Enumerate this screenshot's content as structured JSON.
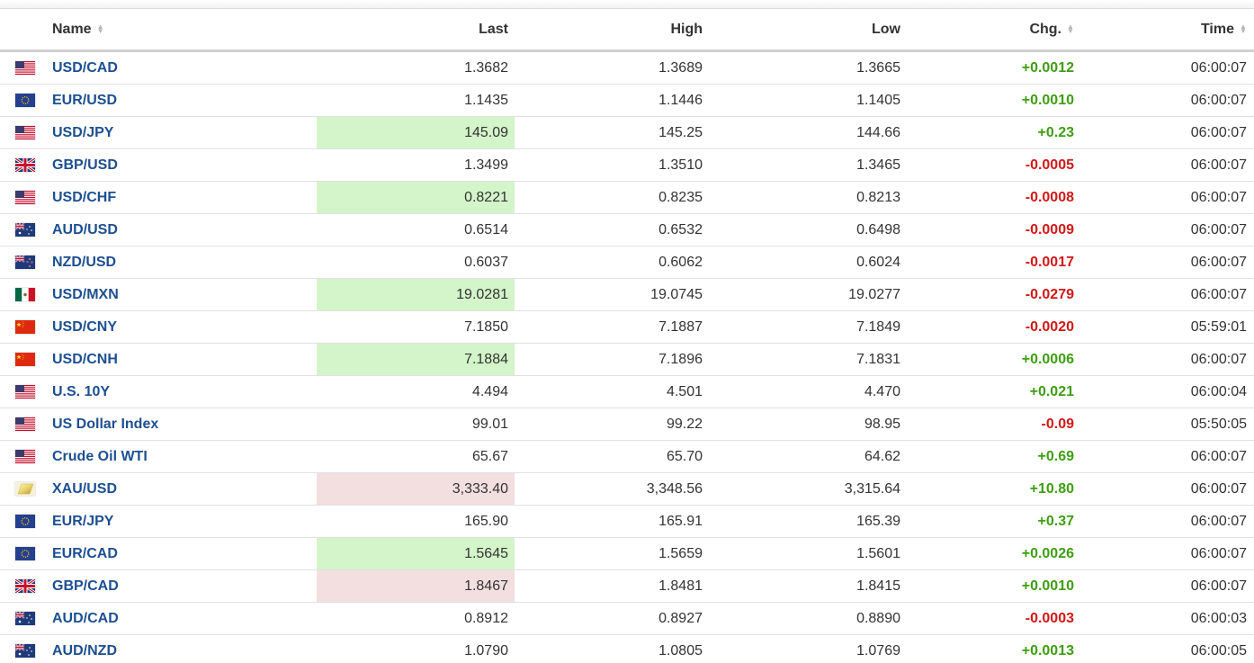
{
  "colors": {
    "positive": "#3e9e12",
    "negative": "#d31717",
    "name_link": "#1d4f91",
    "flash_up_bg": "#d4f4c9",
    "flash_down_bg": "#f3dfe0"
  },
  "columns": {
    "name": "Name",
    "last": "Last",
    "high": "High",
    "low": "Low",
    "chg": "Chg.",
    "time": "Time"
  },
  "rows": [
    {
      "flag": "us-flag-icon",
      "name": "USD/CAD",
      "last": "1.3682",
      "high": "1.3689",
      "low": "1.3665",
      "chg": "+0.0012",
      "direction": "up",
      "flash": "",
      "time": "06:00:07"
    },
    {
      "flag": "eu-flag-icon",
      "name": "EUR/USD",
      "last": "1.1435",
      "high": "1.1446",
      "low": "1.1405",
      "chg": "+0.0010",
      "direction": "up",
      "flash": "",
      "time": "06:00:07"
    },
    {
      "flag": "us-flag-icon",
      "name": "USD/JPY",
      "last": "145.09",
      "high": "145.25",
      "low": "144.66",
      "chg": "+0.23",
      "direction": "up",
      "flash": "up",
      "time": "06:00:07"
    },
    {
      "flag": "uk-flag-icon",
      "name": "GBP/USD",
      "last": "1.3499",
      "high": "1.3510",
      "low": "1.3465",
      "chg": "-0.0005",
      "direction": "down",
      "flash": "",
      "time": "06:00:07"
    },
    {
      "flag": "us-flag-icon",
      "name": "USD/CHF",
      "last": "0.8221",
      "high": "0.8235",
      "low": "0.8213",
      "chg": "-0.0008",
      "direction": "down",
      "flash": "up",
      "time": "06:00:07"
    },
    {
      "flag": "au-flag-icon",
      "name": "AUD/USD",
      "last": "0.6514",
      "high": "0.6532",
      "low": "0.6498",
      "chg": "-0.0009",
      "direction": "down",
      "flash": "",
      "time": "06:00:07"
    },
    {
      "flag": "nz-flag-icon",
      "name": "NZD/USD",
      "last": "0.6037",
      "high": "0.6062",
      "low": "0.6024",
      "chg": "-0.0017",
      "direction": "down",
      "flash": "",
      "time": "06:00:07"
    },
    {
      "flag": "mx-flag-icon",
      "name": "USD/MXN",
      "last": "19.0281",
      "high": "19.0745",
      "low": "19.0277",
      "chg": "-0.0279",
      "direction": "down",
      "flash": "up",
      "time": "06:00:07"
    },
    {
      "flag": "cn-flag-icon",
      "name": "USD/CNY",
      "last": "7.1850",
      "high": "7.1887",
      "low": "7.1849",
      "chg": "-0.0020",
      "direction": "down",
      "flash": "",
      "time": "05:59:01"
    },
    {
      "flag": "cn-flag-icon",
      "name": "USD/CNH",
      "last": "7.1884",
      "high": "7.1896",
      "low": "7.1831",
      "chg": "+0.0006",
      "direction": "up",
      "flash": "up",
      "time": "06:00:07"
    },
    {
      "flag": "us-flag-icon",
      "name": "U.S. 10Y",
      "last": "4.494",
      "high": "4.501",
      "low": "4.470",
      "chg": "+0.021",
      "direction": "up",
      "flash": "",
      "time": "06:00:04"
    },
    {
      "flag": "us-flag-icon",
      "name": "US Dollar Index",
      "last": "99.01",
      "high": "99.22",
      "low": "98.95",
      "chg": "-0.09",
      "direction": "down",
      "flash": "",
      "time": "05:50:05"
    },
    {
      "flag": "us-flag-icon",
      "name": "Crude Oil WTI",
      "last": "65.67",
      "high": "65.70",
      "low": "64.62",
      "chg": "+0.69",
      "direction": "up",
      "flash": "",
      "time": "06:00:07"
    },
    {
      "flag": "gold-flag-icon",
      "name": "XAU/USD",
      "last": "3,333.40",
      "high": "3,348.56",
      "low": "3,315.64",
      "chg": "+10.80",
      "direction": "up",
      "flash": "down",
      "time": "06:00:07"
    },
    {
      "flag": "eu-flag-icon",
      "name": "EUR/JPY",
      "last": "165.90",
      "high": "165.91",
      "low": "165.39",
      "chg": "+0.37",
      "direction": "up",
      "flash": "",
      "time": "06:00:07"
    },
    {
      "flag": "eu-flag-icon",
      "name": "EUR/CAD",
      "last": "1.5645",
      "high": "1.5659",
      "low": "1.5601",
      "chg": "+0.0026",
      "direction": "up",
      "flash": "up",
      "time": "06:00:07"
    },
    {
      "flag": "uk-flag-icon",
      "name": "GBP/CAD",
      "last": "1.8467",
      "high": "1.8481",
      "low": "1.8415",
      "chg": "+0.0010",
      "direction": "up",
      "flash": "down",
      "time": "06:00:07"
    },
    {
      "flag": "au-flag-icon",
      "name": "AUD/CAD",
      "last": "0.8912",
      "high": "0.8927",
      "low": "0.8890",
      "chg": "-0.0003",
      "direction": "down",
      "flash": "",
      "time": "06:00:03"
    },
    {
      "flag": "au-flag-icon",
      "name": "AUD/NZD",
      "last": "1.0790",
      "high": "1.0805",
      "low": "1.0769",
      "chg": "+0.0013",
      "direction": "up",
      "flash": "",
      "time": "06:00:05"
    }
  ]
}
